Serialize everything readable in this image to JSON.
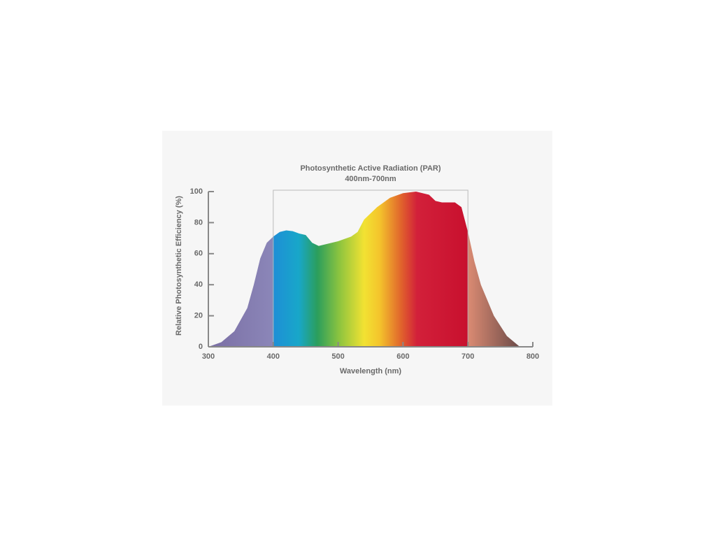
{
  "chart_data": {
    "type": "area",
    "title": "Photosynthetic Active Radiation (PAR)",
    "subtitle": "400nm-700nm",
    "xlabel": "Wavelength (nm)",
    "ylabel": "Relative Photosynthetic Efficiency (%)",
    "x": [
      300,
      320,
      340,
      360,
      370,
      380,
      390,
      400,
      410,
      420,
      430,
      440,
      450,
      460,
      470,
      480,
      500,
      520,
      530,
      540,
      560,
      580,
      600,
      620,
      640,
      650,
      660,
      680,
      690,
      700,
      710,
      720,
      740,
      760,
      780
    ],
    "values": [
      0,
      3,
      10,
      25,
      40,
      57,
      67,
      71,
      74,
      75,
      74.5,
      73,
      72,
      67,
      65,
      66,
      68,
      71,
      74,
      82,
      90,
      96,
      99,
      100,
      98,
      94,
      93,
      93,
      90,
      74,
      55,
      40,
      20,
      7,
      0
    ],
    "xlim": [
      300,
      800
    ],
    "ylim": [
      0,
      100
    ],
    "xticks": [
      300,
      400,
      500,
      600,
      700,
      800
    ],
    "yticks": [
      0,
      20,
      40,
      60,
      80,
      100
    ]
  }
}
